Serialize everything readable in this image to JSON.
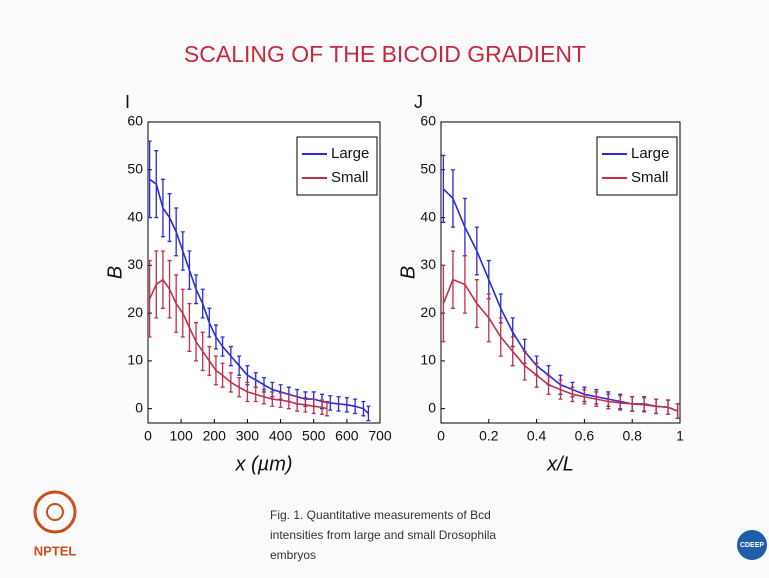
{
  "slide_title": "SCALING OF THE BICOID GRADIENT",
  "caption": [
    "Fig. 1. Quantitative measurements of Bcd",
    "intensities from large and small Drosophila",
    "embryos"
  ],
  "logos": [
    "NPTEL",
    "CDEEP"
  ],
  "chart_data": [
    {
      "type": "line",
      "title": "I",
      "x_label": "x (µm)",
      "y_label": "B",
      "xlim": [
        0,
        700
      ],
      "ylim": [
        -3,
        60
      ],
      "xticks": [
        0,
        100,
        200,
        300,
        400,
        500,
        600,
        700
      ],
      "yticks": [
        0,
        10,
        20,
        30,
        40,
        50,
        60
      ],
      "legend": "upper right",
      "series": [
        {
          "name": "Large",
          "color": "#2b2bd8",
          "x": [
            5,
            25,
            45,
            65,
            85,
            105,
            125,
            145,
            165,
            185,
            205,
            225,
            250,
            275,
            300,
            325,
            350,
            375,
            400,
            425,
            450,
            475,
            500,
            525,
            550,
            575,
            600,
            625,
            650,
            665
          ],
          "values": [
            48,
            47,
            42,
            40,
            37,
            33,
            29,
            25,
            22,
            18,
            15,
            13,
            11,
            9,
            7,
            6,
            5,
            4,
            3.5,
            3,
            2.5,
            2,
            2,
            1.5,
            1.2,
            1,
            0.8,
            0.5,
            0,
            -1
          ],
          "errors": [
            8,
            7,
            6,
            5,
            5,
            4,
            4,
            3,
            3,
            3,
            2.5,
            2,
            2,
            2,
            2,
            1.5,
            1.5,
            1.5,
            1.5,
            1.5,
            1.5,
            1.5,
            1.5,
            1.5,
            1.5,
            1.5,
            1.5,
            1.5,
            1.5,
            1.5
          ]
        },
        {
          "name": "Small",
          "color": "#c0304a",
          "x": [
            5,
            25,
            45,
            65,
            85,
            105,
            125,
            145,
            165,
            185,
            205,
            225,
            250,
            275,
            300,
            325,
            350,
            375,
            400,
            425,
            450,
            475,
            500,
            525,
            540
          ],
          "values": [
            23,
            26,
            27,
            25,
            22,
            20,
            17,
            14,
            12,
            10,
            8,
            7,
            5.5,
            4.5,
            3.5,
            3,
            2.5,
            2,
            1.8,
            1.5,
            1,
            0.8,
            0.5,
            0.3,
            0
          ],
          "errors": [
            8,
            7,
            6,
            6,
            6,
            5,
            5,
            4,
            4,
            3,
            3,
            2.5,
            2,
            2,
            2,
            1.5,
            1.5,
            1.5,
            1.5,
            1.5,
            1.5,
            1.5,
            1.5,
            1.5,
            1.5
          ]
        }
      ]
    },
    {
      "type": "line",
      "title": "J",
      "x_label": "x/L",
      "y_label": "B",
      "xlim": [
        0,
        1
      ],
      "ylim": [
        -3,
        60
      ],
      "xticks": [
        0,
        0.2,
        0.4,
        0.6,
        0.8,
        1
      ],
      "yticks": [
        0,
        10,
        20,
        30,
        40,
        50,
        60
      ],
      "legend": "upper right",
      "series": [
        {
          "name": "Large",
          "color": "#2b2bd8",
          "x": [
            0.01,
            0.05,
            0.1,
            0.15,
            0.2,
            0.25,
            0.3,
            0.35,
            0.4,
            0.45,
            0.5,
            0.55,
            0.6,
            0.65,
            0.7,
            0.75,
            0.8,
            0.85,
            0.9,
            0.95,
            0.99
          ],
          "values": [
            46,
            44,
            38,
            33,
            27,
            21,
            16,
            12,
            9,
            7,
            5,
            4,
            3,
            2.5,
            2,
            1.5,
            1,
            1,
            0.5,
            0.3,
            -0.5
          ],
          "errors": [
            7,
            6,
            6,
            5,
            4,
            3,
            3,
            2.5,
            2,
            2,
            2,
            1.5,
            1.5,
            1.5,
            1.5,
            1.5,
            1.5,
            1.5,
            1.5,
            1.5,
            1.5
          ]
        },
        {
          "name": "Small",
          "color": "#c0304a",
          "x": [
            0.01,
            0.05,
            0.1,
            0.15,
            0.2,
            0.25,
            0.3,
            0.35,
            0.4,
            0.45,
            0.5,
            0.55,
            0.6,
            0.65,
            0.7,
            0.75,
            0.8,
            0.85,
            0.9,
            0.95,
            0.99
          ],
          "values": [
            22,
            27,
            26,
            22,
            19,
            15,
            12,
            9,
            7,
            5,
            4,
            3,
            2.5,
            2,
            1.5,
            1.2,
            1,
            0.8,
            0.5,
            0.3,
            -0.5
          ],
          "errors": [
            8,
            6,
            6,
            5,
            5,
            4,
            3,
            3,
            2.5,
            2,
            2,
            1.5,
            1.5,
            1.5,
            1.5,
            1.5,
            1.5,
            1.5,
            1.5,
            1.5,
            1.5
          ]
        }
      ]
    }
  ]
}
